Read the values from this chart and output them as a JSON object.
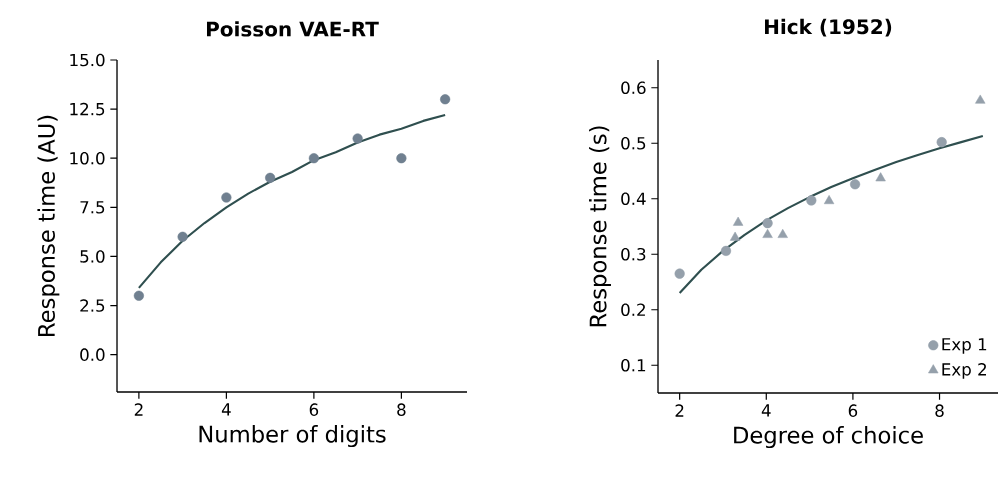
{
  "chart_data": [
    {
      "type": "scatter",
      "title": "Poisson VAE-RT",
      "xlabel": "Number of digits",
      "ylabel": "Response time (AU)",
      "xlim": [
        1.5,
        9.5
      ],
      "ylim": [
        -1.9,
        15.0
      ],
      "xticks": [
        2,
        4,
        6,
        8
      ],
      "yticks": [
        {
          "value": 0,
          "label": "0.0"
        },
        {
          "value": 2.5,
          "label": "2.5"
        },
        {
          "value": 5,
          "label": "5.0"
        },
        {
          "value": 7.5,
          "label": "7.5"
        },
        {
          "value": 10,
          "label": "10.0"
        },
        {
          "value": 12.5,
          "label": "12.5"
        },
        {
          "value": 15,
          "label": "15.0"
        }
      ],
      "marker": "circle",
      "series": [
        {
          "color": "#708090",
          "x": [
            2,
            3,
            4,
            5,
            6,
            7,
            8,
            9
          ],
          "values": [
            3,
            6,
            8,
            9,
            10,
            11,
            10,
            13
          ]
        },
        {
          "type": "line",
          "color": "#2f4f4f",
          "marker": "none",
          "x": [
            2,
            2.5,
            3,
            3.5,
            4,
            4.5,
            5,
            5.5,
            6,
            6.5,
            7,
            7.5,
            8,
            8.5,
            9
          ],
          "values": [
            3.4,
            4.7,
            5.8,
            6.7,
            7.5,
            8.2,
            8.8,
            9.3,
            9.9,
            10.3,
            10.8,
            11.2,
            11.5,
            11.9,
            12.2
          ]
        }
      ]
    },
    {
      "type": "scatter",
      "title": "Hick (1952)",
      "xlabel": "Degree of choice",
      "ylabel": "Response time (s)",
      "xlim": [
        1.5,
        9.35
      ],
      "ylim": [
        0.05,
        0.65
      ],
      "xticks": [
        2,
        4,
        6,
        8
      ],
      "yticks": [
        0.1,
        0.2,
        0.3,
        0.4,
        0.5,
        0.6
      ],
      "legend": "bottom right",
      "series": [
        {
          "name": "Exp 1",
          "color": "#95a0ab",
          "marker": "circle",
          "x": [
            2,
            3.07,
            4.03,
            5.04,
            6.05,
            8.05
          ],
          "values": [
            0.265,
            0.306,
            0.356,
            0.397,
            0.426,
            0.502
          ]
        },
        {
          "name": "Exp 2",
          "color": "#95a0ab",
          "marker": "triangle",
          "x": [
            3.28,
            3.35,
            4.03,
            4.38,
            5.45,
            6.64,
            8.94
          ],
          "values": [
            0.33,
            0.357,
            0.335,
            0.335,
            0.396,
            0.437,
            0.577
          ]
        },
        {
          "type": "line",
          "color": "#2f4f4f",
          "marker": "none",
          "x": [
            2,
            2.5,
            3,
            3.5,
            4,
            4.5,
            5,
            5.5,
            6,
            6.5,
            7,
            7.5,
            8,
            8.5,
            9
          ],
          "values": [
            0.23,
            0.272,
            0.306,
            0.335,
            0.361,
            0.383,
            0.403,
            0.421,
            0.437,
            0.452,
            0.466,
            0.479,
            0.491,
            0.502,
            0.513
          ]
        }
      ]
    }
  ]
}
